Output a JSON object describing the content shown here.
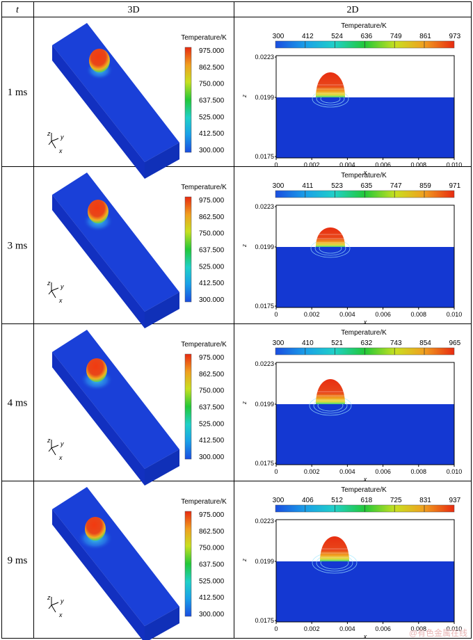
{
  "headers": {
    "t": "t",
    "col3d": "3D",
    "col2d": "2D"
  },
  "legend3d": {
    "title": "Temperature/K",
    "ticks": [
      "975.000",
      "862.500",
      "750.000",
      "637.500",
      "525.000",
      "412.500",
      "300.000"
    ]
  },
  "axes2d": {
    "ylabel": "z",
    "xlabel": "x",
    "yticks": [
      "0.0223",
      "0.0199",
      "0.0175"
    ],
    "xticks": [
      "0",
      "0.002",
      "0.004",
      "0.006",
      "0.008",
      "0.010"
    ]
  },
  "triad": {
    "z": "z",
    "y": "y",
    "x": "x"
  },
  "rows": [
    {
      "time": "1 ms",
      "bar2d_title": "Temperature/K",
      "bar2d_ticks": [
        "300",
        "412",
        "524",
        "636",
        "749",
        "861",
        "973"
      ]
    },
    {
      "time": "3 ms",
      "bar2d_title": "Temperature/K",
      "bar2d_ticks": [
        "300",
        "411",
        "523",
        "635",
        "747",
        "859",
        "971"
      ]
    },
    {
      "time": "4 ms",
      "bar2d_title": "Temperature/K",
      "bar2d_ticks": [
        "300",
        "410",
        "521",
        "632",
        "743",
        "854",
        "965"
      ]
    },
    {
      "time": "9 ms",
      "bar2d_title": "Temperature/K",
      "bar2d_ticks": [
        "300",
        "406",
        "512",
        "618",
        "725",
        "831",
        "937"
      ]
    }
  ],
  "watermark": "@有色金属在线",
  "colors": {
    "solid_blue": "#1438d2",
    "melt_red": "#e53a12",
    "grid_line": "#000000"
  }
}
